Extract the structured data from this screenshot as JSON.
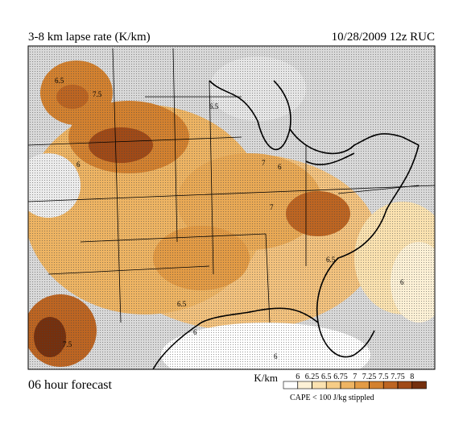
{
  "header": {
    "title": "3-8 km lapse rate (K/km)",
    "run": "10/28/2009  12z  RUC"
  },
  "footer": {
    "forecast": "06 hour forecast",
    "note": "CAPE < 100 J/kg stippled"
  },
  "colorbar": {
    "unit": "K/km",
    "levels": [
      6,
      6.25,
      6.5,
      6.75,
      7,
      7.25,
      7.5,
      7.75,
      8
    ],
    "colors": [
      "#ffffff",
      "#fdf1d6",
      "#fbe2b0",
      "#f6cc86",
      "#eeb463",
      "#e39b45",
      "#d3812f",
      "#bd6522",
      "#a04a17",
      "#75300e"
    ]
  },
  "map": {
    "contour_labels": [
      "6.5",
      "7.5",
      "6",
      "6.5",
      "7",
      "6",
      "7",
      "6.5",
      "6",
      "6.5",
      "7.5",
      "6",
      "6"
    ]
  }
}
